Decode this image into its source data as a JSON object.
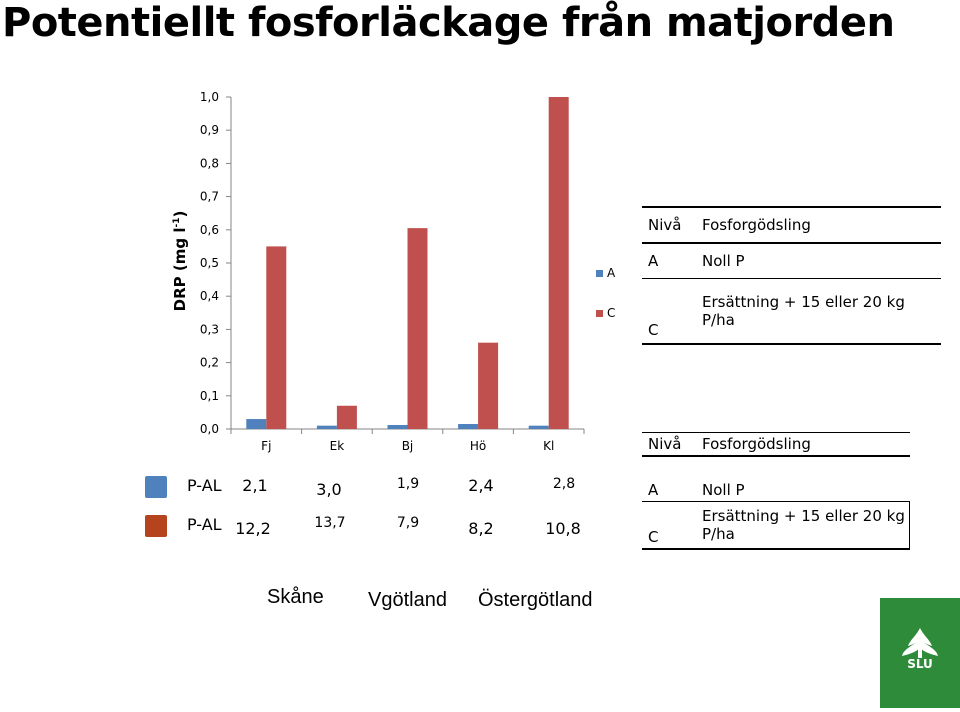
{
  "title": "Potentiellt fosforläckage från matjorden",
  "ylabel_main": "DRP (mg l",
  "ylabel_sup": "-1",
  "ylabel_close": ")",
  "chart_data": {
    "type": "bar",
    "categories": [
      "Fj",
      "Ek",
      "Bj",
      "Hö",
      "Kl"
    ],
    "series": [
      {
        "name": "A",
        "color": "#4f81bd",
        "values": [
          0.03,
          0.01,
          0.012,
          0.015,
          0.01
        ]
      },
      {
        "name": "C",
        "color": "#c0504d",
        "values": [
          0.55,
          0.07,
          0.605,
          0.26,
          1.0
        ]
      }
    ],
    "ylim": [
      0,
      1.0
    ],
    "yticks": [
      "0,0",
      "0,1",
      "0,2",
      "0,3",
      "0,4",
      "0,5",
      "0,6",
      "0,7",
      "0,8",
      "0,9",
      "1,0"
    ],
    "legend_position": "right"
  },
  "info_table_top": {
    "header": [
      "Nivå",
      "Fosforgödsling"
    ],
    "rows": [
      [
        "A",
        "Noll P"
      ],
      [
        "C",
        "Ersättning + 15 eller 20 kg P/ha"
      ]
    ]
  },
  "info_table_bottom": {
    "header": [
      "Nivå",
      "Fosforgödsling"
    ],
    "rows": [
      [
        "A",
        "Noll P"
      ],
      [
        "C",
        "Ersättning + 15 eller 20 kg P/ha"
      ]
    ]
  },
  "pal_rows": [
    {
      "label": "P-AL",
      "color": "#4f81bd",
      "values": [
        "2,1",
        "3,0",
        "1,9",
        "2,4",
        "2,8"
      ]
    },
    {
      "label": "P-AL",
      "color": "#b5441e",
      "values": [
        "12,2",
        "13,7",
        "7,9",
        "8,2",
        "10,8"
      ]
    }
  ],
  "regions": [
    "Skåne",
    "Vgötland",
    "Östergötland"
  ],
  "logo_text": "SLU"
}
